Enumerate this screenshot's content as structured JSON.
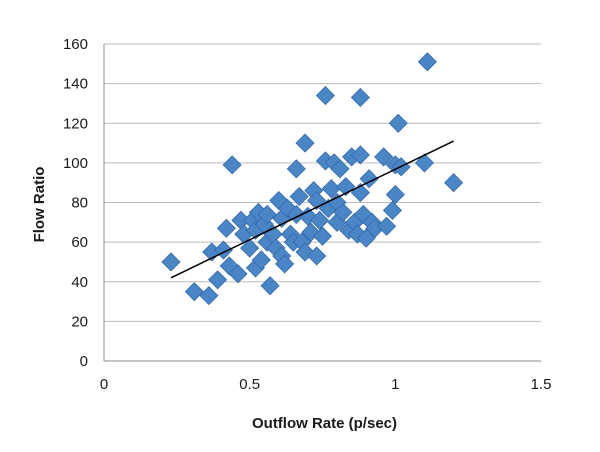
{
  "chart_data": {
    "type": "scatter",
    "title": "",
    "xlabel": "Outflow Rate (p/sec)",
    "ylabel": "Flow Ratio",
    "xlim": [
      0,
      1.5
    ],
    "ylim": [
      0,
      160
    ],
    "x_ticks": [
      "0",
      "0.5",
      "1",
      "1.5"
    ],
    "y_ticks": [
      "0",
      "20",
      "40",
      "60",
      "80",
      "100",
      "120",
      "140",
      "160"
    ],
    "grid": "horizontal",
    "legend": "none",
    "marker_color": "#4a86c6",
    "marker_edge_color": "#3569a8",
    "marker_shape": "diamond",
    "trendline": {
      "type": "linear",
      "from": [
        0.23,
        42
      ],
      "to": [
        1.2,
        111
      ],
      "color": "#000000"
    },
    "points": [
      [
        0.23,
        50
      ],
      [
        0.31,
        35
      ],
      [
        0.36,
        33
      ],
      [
        0.37,
        55
      ],
      [
        0.39,
        41
      ],
      [
        0.41,
        56
      ],
      [
        0.42,
        67
      ],
      [
        0.43,
        48
      ],
      [
        0.44,
        99
      ],
      [
        0.46,
        44
      ],
      [
        0.47,
        71
      ],
      [
        0.48,
        64
      ],
      [
        0.5,
        57
      ],
      [
        0.51,
        71
      ],
      [
        0.52,
        47
      ],
      [
        0.52,
        66
      ],
      [
        0.53,
        75
      ],
      [
        0.54,
        51
      ],
      [
        0.55,
        69
      ],
      [
        0.56,
        60
      ],
      [
        0.56,
        74
      ],
      [
        0.57,
        38
      ],
      [
        0.58,
        64
      ],
      [
        0.59,
        57
      ],
      [
        0.6,
        81
      ],
      [
        0.61,
        53
      ],
      [
        0.61,
        72
      ],
      [
        0.62,
        49
      ],
      [
        0.63,
        77
      ],
      [
        0.64,
        64
      ],
      [
        0.65,
        60
      ],
      [
        0.66,
        97
      ],
      [
        0.66,
        74
      ],
      [
        0.67,
        83
      ],
      [
        0.68,
        60
      ],
      [
        0.69,
        55
      ],
      [
        0.69,
        110
      ],
      [
        0.7,
        73
      ],
      [
        0.71,
        65
      ],
      [
        0.72,
        86
      ],
      [
        0.73,
        53
      ],
      [
        0.73,
        81
      ],
      [
        0.74,
        71
      ],
      [
        0.75,
        63
      ],
      [
        0.76,
        134
      ],
      [
        0.76,
        101
      ],
      [
        0.77,
        77
      ],
      [
        0.78,
        87
      ],
      [
        0.79,
        100
      ],
      [
        0.8,
        70
      ],
      [
        0.8,
        80
      ],
      [
        0.81,
        97
      ],
      [
        0.82,
        75
      ],
      [
        0.83,
        88
      ],
      [
        0.84,
        66
      ],
      [
        0.85,
        103
      ],
      [
        0.86,
        70
      ],
      [
        0.87,
        64
      ],
      [
        0.88,
        133
      ],
      [
        0.88,
        85
      ],
      [
        0.88,
        104
      ],
      [
        0.89,
        74
      ],
      [
        0.9,
        62
      ],
      [
        0.91,
        92
      ],
      [
        0.92,
        70
      ],
      [
        0.93,
        67
      ],
      [
        0.96,
        103
      ],
      [
        0.97,
        68
      ],
      [
        0.99,
        76
      ],
      [
        1.0,
        84
      ],
      [
        1.0,
        99
      ],
      [
        1.01,
        120
      ],
      [
        1.02,
        98
      ],
      [
        1.1,
        100
      ],
      [
        1.11,
        151
      ],
      [
        1.2,
        90
      ]
    ]
  }
}
